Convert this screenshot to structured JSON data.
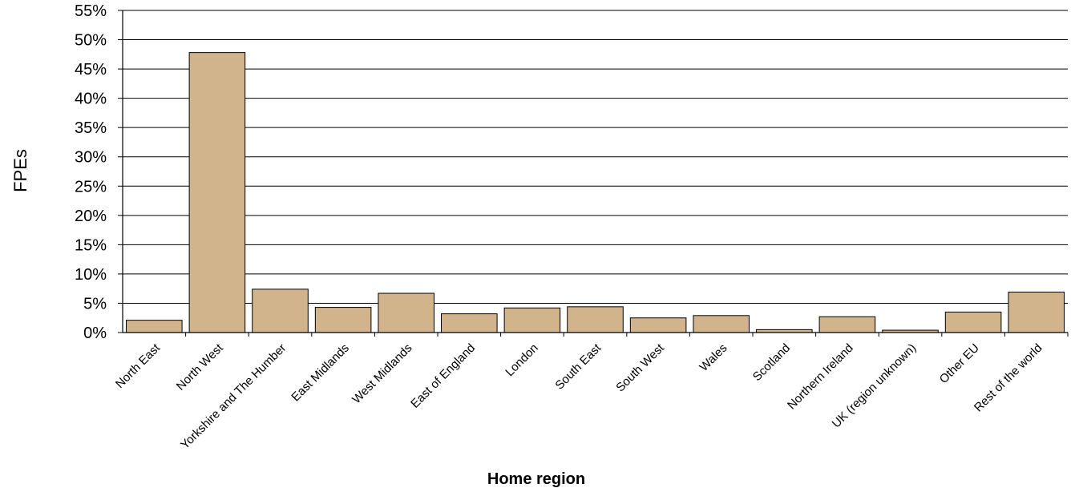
{
  "chart_data": {
    "type": "bar",
    "title": "",
    "xlabel": "Home region",
    "ylabel": "FPEs",
    "ylim": [
      0,
      55
    ],
    "yticks": [
      0,
      5,
      10,
      15,
      20,
      25,
      30,
      35,
      40,
      45,
      50,
      55
    ],
    "ytick_suffix": "%",
    "grid": "horizontal",
    "categories": [
      "North East",
      "North West",
      "Yorkshire and The Humber",
      "East Midlands",
      "West Midlands",
      "East of England",
      "London",
      "South East",
      "South West",
      "Wales",
      "Scotland",
      "Northern Ireland",
      "UK (region unknown)",
      "Other EU",
      "Rest of the world"
    ],
    "values": [
      2.1,
      47.8,
      7.4,
      4.3,
      6.7,
      3.2,
      4.2,
      4.4,
      2.5,
      2.9,
      0.5,
      2.7,
      0.4,
      3.5,
      6.9
    ],
    "bar_color": "#D2B48C",
    "bar_edge_color": "#000000"
  }
}
